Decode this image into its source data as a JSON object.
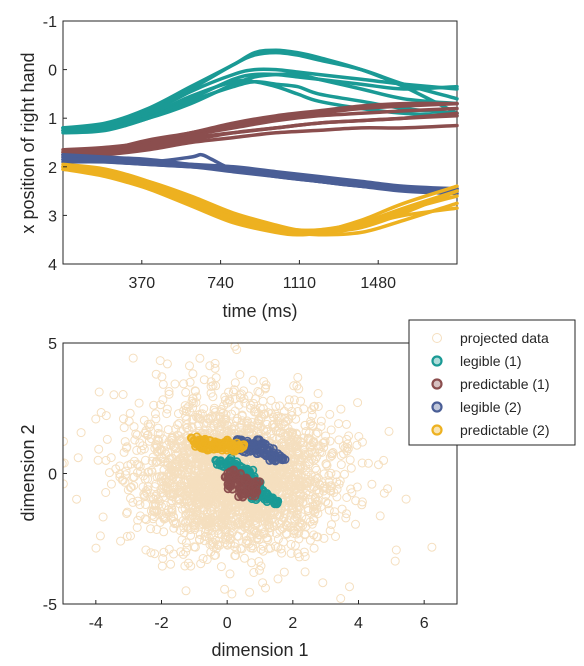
{
  "chart_data": [
    {
      "type": "line",
      "title": "",
      "xlabel": "time (ms)",
      "ylabel": "x position of right hand",
      "xlim": [
        0,
        1850
      ],
      "ylim": [
        -1,
        4
      ],
      "y_reversed": true,
      "xticks": [
        370,
        740,
        1110,
        1480
      ],
      "yticks": [
        -1,
        0,
        1,
        2,
        3,
        4
      ],
      "grid": false,
      "series": [
        {
          "color": "#1a9a95",
          "lines": [
            {
              "x": [
                0,
                200,
                400,
                600,
                800,
                900,
                1000,
                1100,
                1200,
                1400,
                1600,
                1850
              ],
              "y": [
                1.25,
                1.2,
                0.95,
                0.55,
                0.25,
                0.25,
                0.35,
                0.5,
                0.65,
                0.8,
                0.9,
                0.95
              ]
            },
            {
              "x": [
                0,
                200,
                400,
                600,
                800,
                900,
                1000,
                1100,
                1200,
                1400,
                1600,
                1850
              ],
              "y": [
                1.2,
                1.15,
                0.9,
                0.45,
                0.1,
                0.0,
                0.0,
                0.05,
                0.1,
                0.2,
                0.3,
                0.4
              ]
            },
            {
              "x": [
                0,
                200,
                400,
                600,
                800,
                900,
                1000,
                1100,
                1200,
                1400,
                1600,
                1850
              ],
              "y": [
                1.25,
                1.2,
                1.0,
                0.6,
                0.2,
                0.1,
                0.1,
                0.15,
                0.2,
                0.3,
                0.4,
                0.35
              ]
            },
            {
              "x": [
                0,
                200,
                400,
                600,
                800,
                900,
                1000,
                1100,
                1200,
                1400,
                1600,
                1850
              ],
              "y": [
                1.3,
                1.25,
                1.0,
                0.65,
                0.35,
                0.25,
                0.3,
                0.35,
                0.5,
                0.65,
                0.8,
                0.9
              ]
            },
            {
              "x": [
                0,
                200,
                400,
                600,
                800,
                900,
                1000,
                1100,
                1200,
                1400,
                1600,
                1850
              ],
              "y": [
                1.2,
                1.15,
                0.85,
                0.4,
                -0.1,
                -0.3,
                -0.35,
                -0.3,
                -0.2,
                0.0,
                0.3,
                0.6
              ]
            },
            {
              "x": [
                0,
                200,
                400,
                600,
                800,
                900,
                1000,
                1100,
                1200,
                1400,
                1600,
                1850
              ],
              "y": [
                1.25,
                1.2,
                1.0,
                0.7,
                0.3,
                0.15,
                0.1,
                0.1,
                0.2,
                0.4,
                0.6,
                0.7
              ]
            },
            {
              "x": [
                0,
                200,
                400,
                600,
                800,
                900,
                1000,
                1100,
                1200,
                1400,
                1600,
                1850
              ],
              "y": [
                1.2,
                1.1,
                0.8,
                0.35,
                -0.1,
                -0.35,
                -0.4,
                -0.35,
                -0.25,
                0.0,
                0.35,
                0.9
              ]
            }
          ]
        },
        {
          "color": "#8b4e4e",
          "lines": [
            {
              "x": [
                0,
                200,
                400,
                600,
                800,
                1000,
                1200,
                1400,
                1600,
                1850
              ],
              "y": [
                1.7,
                1.65,
                1.5,
                1.35,
                1.2,
                1.05,
                0.95,
                0.9,
                0.85,
                0.8
              ]
            },
            {
              "x": [
                0,
                200,
                400,
                600,
                800,
                1000,
                1200,
                1400,
                1600,
                1850
              ],
              "y": [
                1.75,
                1.7,
                1.55,
                1.4,
                1.3,
                1.2,
                1.1,
                1.05,
                1.0,
                0.95
              ]
            },
            {
              "x": [
                0,
                200,
                400,
                600,
                800,
                1000,
                1200,
                1400,
                1600,
                1850
              ],
              "y": [
                1.65,
                1.6,
                1.5,
                1.3,
                1.15,
                1.0,
                0.9,
                0.8,
                0.75,
                0.7
              ]
            },
            {
              "x": [
                0,
                200,
                400,
                600,
                800,
                1000,
                1200,
                1400,
                1600,
                1850
              ],
              "y": [
                1.8,
                1.75,
                1.65,
                1.5,
                1.4,
                1.3,
                1.25,
                1.2,
                1.2,
                1.15
              ]
            },
            {
              "x": [
                0,
                200,
                400,
                600,
                800,
                1000,
                1200,
                1400,
                1600,
                1850
              ],
              "y": [
                1.7,
                1.65,
                1.45,
                1.3,
                1.1,
                0.95,
                0.85,
                0.75,
                0.7,
                0.7
              ]
            },
            {
              "x": [
                0,
                200,
                400,
                600,
                800,
                1000,
                1200,
                1400,
                1600,
                1850
              ],
              "y": [
                1.75,
                1.7,
                1.6,
                1.45,
                1.3,
                1.2,
                1.1,
                1.05,
                1.0,
                0.9
              ]
            }
          ]
        },
        {
          "color": "#4a5e96",
          "lines": [
            {
              "x": [
                0,
                200,
                400,
                600,
                800,
                1000,
                1200,
                1400,
                1600,
                1850
              ],
              "y": [
                1.8,
                1.85,
                1.9,
                1.95,
                2.0,
                2.1,
                2.2,
                2.3,
                2.4,
                2.45
              ]
            },
            {
              "x": [
                0,
                200,
                400,
                600,
                800,
                1000,
                1200,
                1400,
                1600,
                1850
              ],
              "y": [
                1.85,
                1.9,
                1.95,
                2.0,
                2.05,
                2.15,
                2.25,
                2.35,
                2.45,
                2.5
              ]
            },
            {
              "x": [
                0,
                200,
                400,
                600,
                800,
                1000,
                1200,
                1400,
                1600,
                1850
              ],
              "y": [
                1.9,
                1.9,
                1.95,
                2.0,
                2.1,
                2.2,
                2.3,
                2.4,
                2.5,
                2.55
              ]
            },
            {
              "x": [
                0,
                200,
                400,
                600,
                650,
                700,
                800,
                1000,
                1200,
                1400,
                1600,
                1850
              ],
              "y": [
                1.85,
                1.85,
                1.9,
                1.8,
                1.75,
                1.85,
                2.05,
                2.2,
                2.3,
                2.4,
                2.45,
                2.5
              ]
            },
            {
              "x": [
                0,
                200,
                400,
                600,
                800,
                1000,
                1200,
                1400,
                1600,
                1850
              ],
              "y": [
                1.75,
                1.8,
                1.85,
                1.95,
                2.05,
                2.15,
                2.3,
                2.4,
                2.45,
                2.45
              ]
            }
          ]
        },
        {
          "color": "#edb120",
          "lines": [
            {
              "x": [
                0,
                200,
                400,
                600,
                800,
                1000,
                1100,
                1200,
                1400,
                1600,
                1850
              ],
              "y": [
                2.0,
                2.1,
                2.3,
                2.6,
                2.95,
                3.2,
                3.3,
                3.35,
                3.25,
                2.95,
                2.5
              ]
            },
            {
              "x": [
                0,
                200,
                400,
                600,
                800,
                1000,
                1100,
                1200,
                1400,
                1600,
                1850
              ],
              "y": [
                2.05,
                2.15,
                2.4,
                2.75,
                3.1,
                3.3,
                3.35,
                3.35,
                3.2,
                2.9,
                2.6
              ]
            },
            {
              "x": [
                0,
                200,
                400,
                600,
                800,
                1000,
                1100,
                1200,
                1400,
                1600,
                1850
              ],
              "y": [
                1.95,
                2.05,
                2.3,
                2.65,
                3.0,
                3.25,
                3.35,
                3.4,
                3.35,
                3.1,
                2.75
              ]
            },
            {
              "x": [
                0,
                200,
                400,
                600,
                800,
                1000,
                1100,
                1200,
                1400,
                1600,
                1850
              ],
              "y": [
                2.0,
                2.1,
                2.35,
                2.7,
                3.05,
                3.25,
                3.3,
                3.3,
                3.15,
                2.85,
                2.5
              ]
            },
            {
              "x": [
                0,
                200,
                400,
                600,
                800,
                1000,
                1100,
                1200,
                1400,
                1600,
                1850
              ],
              "y": [
                2.0,
                2.15,
                2.45,
                2.8,
                3.15,
                3.35,
                3.4,
                3.35,
                3.1,
                2.75,
                2.4
              ]
            },
            {
              "x": [
                0,
                200,
                400,
                600,
                800,
                1000,
                1100,
                1200,
                1400,
                1600,
                1850
              ],
              "y": [
                2.05,
                2.2,
                2.45,
                2.75,
                3.05,
                3.25,
                3.3,
                3.3,
                3.2,
                3.0,
                2.85
              ]
            }
          ]
        }
      ]
    },
    {
      "type": "scatter",
      "title": "",
      "xlabel": "dimension 1",
      "ylabel": "dimension 2",
      "xlim": [
        -5,
        7
      ],
      "ylim": [
        -5,
        5
      ],
      "xticks": [
        -4,
        -2,
        0,
        2,
        4,
        6
      ],
      "yticks": [
        -5,
        0,
        5
      ],
      "grid": false,
      "legend_position": "top-right-outside",
      "background_cloud": {
        "name": "projected data",
        "color": "#f5dfbf",
        "center": [
          0.3,
          -0.1
        ],
        "spread": [
          1.4,
          1.3
        ]
      },
      "series": [
        {
          "name": "projected data",
          "color": "#f5dfbf"
        },
        {
          "name": "legible (1)",
          "color": "#1a9a95",
          "points": [
            [
              -0.3,
              0.4
            ],
            [
              -0.1,
              0.3
            ],
            [
              0.1,
              0.5
            ],
            [
              0.3,
              0.35
            ],
            [
              0.5,
              0.2
            ],
            [
              0.7,
              0.1
            ],
            [
              0.8,
              -0.2
            ],
            [
              0.9,
              -0.4
            ],
            [
              1.0,
              -0.6
            ],
            [
              1.1,
              -0.8
            ],
            [
              1.3,
              -1.0
            ],
            [
              1.5,
              -1.1
            ],
            [
              0.6,
              -0.6
            ],
            [
              0.8,
              -0.9
            ],
            [
              0.4,
              0.0
            ],
            [
              0.2,
              0.2
            ],
            [
              1.2,
              -0.9
            ],
            [
              0.95,
              -0.7
            ]
          ]
        },
        {
          "name": "predictable (1)",
          "color": "#8b4e4e",
          "points": [
            [
              0.0,
              -0.1
            ],
            [
              0.2,
              -0.3
            ],
            [
              0.4,
              -0.5
            ],
            [
              0.6,
              -0.7
            ],
            [
              0.8,
              -0.8
            ],
            [
              0.3,
              -0.1
            ],
            [
              0.5,
              -0.3
            ],
            [
              0.7,
              -0.5
            ],
            [
              0.9,
              -0.4
            ],
            [
              0.1,
              -0.5
            ],
            [
              0.4,
              -0.8
            ],
            [
              0.6,
              -0.2
            ],
            [
              0.2,
              0.05
            ],
            [
              0.8,
              -0.6
            ]
          ]
        },
        {
          "name": "legible (2)",
          "color": "#4a5e96",
          "points": [
            [
              0.3,
              1.0
            ],
            [
              0.5,
              1.1
            ],
            [
              0.7,
              1.15
            ],
            [
              0.9,
              1.2
            ],
            [
              1.1,
              1.1
            ],
            [
              1.3,
              0.9
            ],
            [
              1.5,
              0.7
            ],
            [
              1.7,
              0.6
            ],
            [
              0.6,
              0.9
            ],
            [
              0.8,
              0.95
            ],
            [
              1.0,
              0.85
            ],
            [
              1.2,
              0.75
            ],
            [
              0.4,
              1.2
            ],
            [
              1.4,
              0.55
            ]
          ]
        },
        {
          "name": "predictable (2)",
          "color": "#edb120",
          "points": [
            [
              -1.0,
              1.3
            ],
            [
              -0.8,
              1.2
            ],
            [
              -0.6,
              1.25
            ],
            [
              -0.4,
              1.15
            ],
            [
              -0.2,
              1.1
            ],
            [
              0.0,
              1.2
            ],
            [
              0.2,
              1.1
            ],
            [
              0.4,
              1.05
            ],
            [
              -0.9,
              1.1
            ],
            [
              -0.7,
              1.05
            ],
            [
              -0.5,
              1.0
            ],
            [
              -0.3,
              1.05
            ],
            [
              -0.1,
              0.95
            ],
            [
              0.1,
              1.0
            ],
            [
              0.3,
              0.95
            ]
          ]
        }
      ]
    }
  ]
}
